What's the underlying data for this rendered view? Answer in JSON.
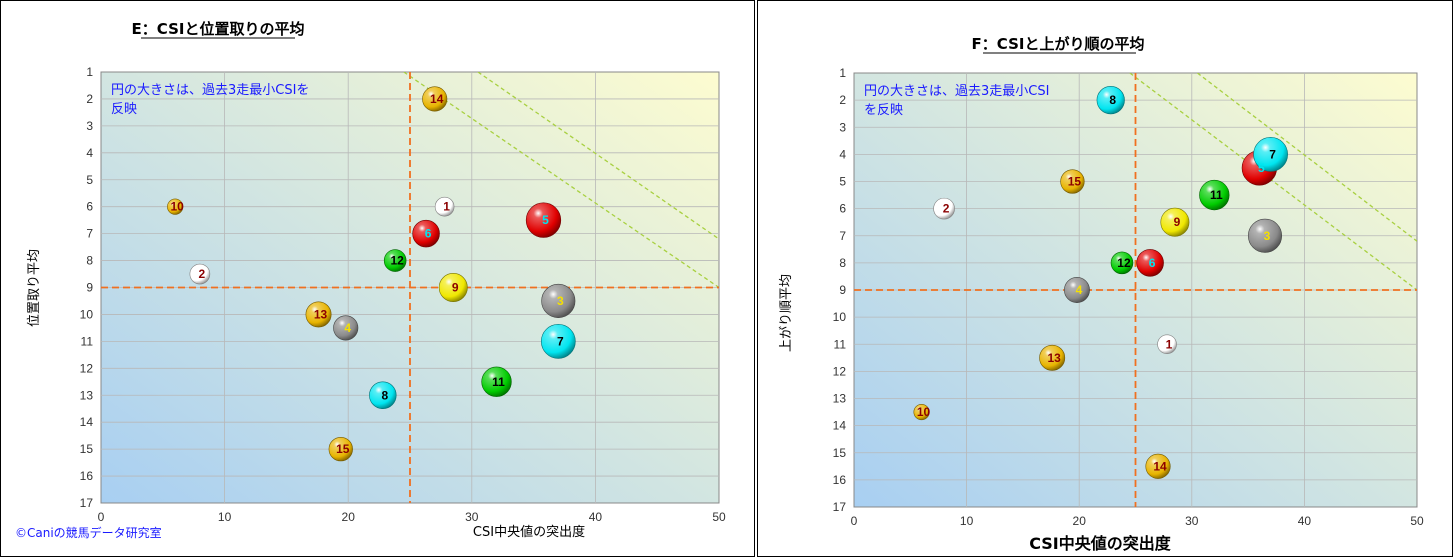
{
  "colors": {
    "red": "#e00000",
    "white": "#ffffff",
    "gray": "#8a8a8a",
    "yellow": "#f0e800",
    "gold": "#e8b400",
    "cyan": "#00e5f0",
    "green": "#00cc00",
    "plot_bg_top": "#fdfcd0",
    "plot_bg_bottom": "#a8cff2",
    "ref_line": "#f07020",
    "diag_line": "#a8d040"
  },
  "label_colors": {
    "1": "#8b0000",
    "2": "#8b0000",
    "3": "#f5e000",
    "4": "#f5e000",
    "5": "#00e5f0",
    "6": "#00e5f0",
    "7": "#000000",
    "8": "#000000",
    "9": "#8b0000",
    "10": "#8b0000",
    "11": "#000000",
    "12": "#000000",
    "13": "#8b0000",
    "14": "#8b0000",
    "15": "#8b0000"
  },
  "credit": "©Caniの競馬データ研究室",
  "chart_data": [
    {
      "type": "scatter",
      "title": "E：CSIと位置取りの平均",
      "xlabel": "CSI中央値の突出度",
      "ylabel": "位置取り平均",
      "note_lines": [
        "円の大きさは、過去3走最小CSIを",
        "反映"
      ],
      "xlim": [
        0,
        50
      ],
      "ylim": [
        1,
        17
      ],
      "y_reversed": true,
      "xticks": [
        0,
        10,
        20,
        30,
        40,
        50
      ],
      "yticks": [
        1,
        2,
        3,
        4,
        5,
        6,
        7,
        8,
        9,
        10,
        11,
        12,
        13,
        14,
        15,
        16,
        17
      ],
      "grid": true,
      "ref_x": 25,
      "ref_y": 9,
      "diag_lines": [
        [
          [
            24.5,
            1
          ],
          [
            50,
            9
          ]
        ],
        [
          [
            30.5,
            1
          ],
          [
            50,
            7.2
          ]
        ]
      ],
      "points": [
        {
          "label": "1",
          "x": 27.8,
          "y": 6.0,
          "size": 0.9,
          "color": "white"
        },
        {
          "label": "2",
          "x": 8.0,
          "y": 8.5,
          "size": 1.0,
          "color": "white"
        },
        {
          "label": "3",
          "x": 37.0,
          "y": 9.5,
          "size": 2.8,
          "color": "gray"
        },
        {
          "label": "4",
          "x": 19.8,
          "y": 10.5,
          "size": 1.5,
          "color": "gray"
        },
        {
          "label": "5",
          "x": 35.8,
          "y": 6.5,
          "size": 3.0,
          "color": "red"
        },
        {
          "label": "6",
          "x": 26.3,
          "y": 7.0,
          "size": 1.8,
          "color": "red"
        },
        {
          "label": "7",
          "x": 37.0,
          "y": 11.0,
          "size": 2.9,
          "color": "cyan"
        },
        {
          "label": "8",
          "x": 22.8,
          "y": 13.0,
          "size": 1.8,
          "color": "cyan"
        },
        {
          "label": "9",
          "x": 28.5,
          "y": 9.0,
          "size": 2.0,
          "color": "yellow"
        },
        {
          "label": "10",
          "x": 6.0,
          "y": 6.0,
          "size": 0.6,
          "color": "gold"
        },
        {
          "label": "11",
          "x": 32.0,
          "y": 12.5,
          "size": 2.2,
          "color": "green"
        },
        {
          "label": "12",
          "x": 23.8,
          "y": 8.0,
          "size": 1.2,
          "color": "green"
        },
        {
          "label": "13",
          "x": 17.6,
          "y": 10.0,
          "size": 1.6,
          "color": "gold"
        },
        {
          "label": "14",
          "x": 27.0,
          "y": 2.0,
          "size": 1.5,
          "color": "gold"
        },
        {
          "label": "15",
          "x": 19.4,
          "y": 15.0,
          "size": 1.4,
          "color": "gold"
        }
      ]
    },
    {
      "type": "scatter",
      "title": "F：CSIと上がり順の平均",
      "xlabel": "CSI中央値の突出度",
      "ylabel": "上がり順平均",
      "note_lines": [
        "円の大きさは、過去3走最小CSI",
        "を反映"
      ],
      "xlim": [
        0,
        50
      ],
      "ylim": [
        1,
        17
      ],
      "y_reversed": true,
      "xticks": [
        0,
        10,
        20,
        30,
        40,
        50
      ],
      "yticks": [
        1,
        2,
        3,
        4,
        5,
        6,
        7,
        8,
        9,
        10,
        11,
        12,
        13,
        14,
        15,
        16,
        17
      ],
      "grid": true,
      "ref_x": 25,
      "ref_y": 9,
      "diag_lines": [
        [
          [
            24.5,
            1
          ],
          [
            50,
            9
          ]
        ],
        [
          [
            30.5,
            1
          ],
          [
            50,
            7.2
          ]
        ]
      ],
      "points": [
        {
          "label": "1",
          "x": 27.8,
          "y": 11.0,
          "size": 0.9,
          "color": "white"
        },
        {
          "label": "2",
          "x": 8.0,
          "y": 6.0,
          "size": 1.1,
          "color": "white"
        },
        {
          "label": "3",
          "x": 36.5,
          "y": 7.0,
          "size": 2.8,
          "color": "gray"
        },
        {
          "label": "4",
          "x": 19.8,
          "y": 9.0,
          "size": 1.6,
          "color": "gray"
        },
        {
          "label": "5",
          "x": 36.0,
          "y": 4.5,
          "size": 3.0,
          "color": "red"
        },
        {
          "label": "6",
          "x": 26.3,
          "y": 8.0,
          "size": 1.8,
          "color": "red"
        },
        {
          "label": "7",
          "x": 37.0,
          "y": 4.0,
          "size": 2.9,
          "color": "cyan"
        },
        {
          "label": "8",
          "x": 22.8,
          "y": 2.0,
          "size": 1.9,
          "color": "cyan"
        },
        {
          "label": "9",
          "x": 28.5,
          "y": 6.5,
          "size": 2.0,
          "color": "yellow"
        },
        {
          "label": "10",
          "x": 6.0,
          "y": 13.5,
          "size": 0.6,
          "color": "gold"
        },
        {
          "label": "11",
          "x": 32.0,
          "y": 5.5,
          "size": 2.2,
          "color": "green"
        },
        {
          "label": "12",
          "x": 23.8,
          "y": 8.0,
          "size": 1.2,
          "color": "green"
        },
        {
          "label": "13",
          "x": 17.6,
          "y": 11.5,
          "size": 1.6,
          "color": "gold"
        },
        {
          "label": "14",
          "x": 27.0,
          "y": 15.5,
          "size": 1.5,
          "color": "gold"
        },
        {
          "label": "15",
          "x": 19.4,
          "y": 5.0,
          "size": 1.4,
          "color": "gold"
        }
      ]
    }
  ]
}
